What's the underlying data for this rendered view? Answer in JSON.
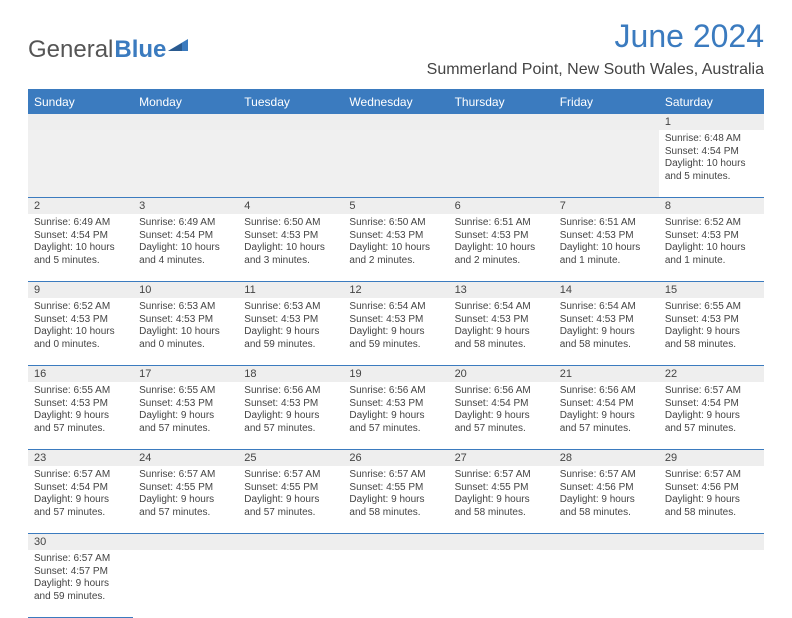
{
  "logo": {
    "general": "General",
    "blue": "Blue"
  },
  "title": "June 2024",
  "location": "Summerland Point, New South Wales, Australia",
  "colors": {
    "header_bg": "#3b7bbf",
    "header_text": "#ffffff",
    "daynum_bg": "#eeeeee",
    "border": "#3b7bbf",
    "title_color": "#3b7bbf",
    "body_text": "#444444",
    "page_bg": "#ffffff"
  },
  "day_headers": [
    "Sunday",
    "Monday",
    "Tuesday",
    "Wednesday",
    "Thursday",
    "Friday",
    "Saturday"
  ],
  "weeks": [
    [
      null,
      null,
      null,
      null,
      null,
      null,
      {
        "n": "1",
        "sr": "Sunrise: 6:48 AM",
        "ss": "Sunset: 4:54 PM",
        "d1": "Daylight: 10 hours",
        "d2": "and 5 minutes."
      }
    ],
    [
      {
        "n": "2",
        "sr": "Sunrise: 6:49 AM",
        "ss": "Sunset: 4:54 PM",
        "d1": "Daylight: 10 hours",
        "d2": "and 5 minutes."
      },
      {
        "n": "3",
        "sr": "Sunrise: 6:49 AM",
        "ss": "Sunset: 4:54 PM",
        "d1": "Daylight: 10 hours",
        "d2": "and 4 minutes."
      },
      {
        "n": "4",
        "sr": "Sunrise: 6:50 AM",
        "ss": "Sunset: 4:53 PM",
        "d1": "Daylight: 10 hours",
        "d2": "and 3 minutes."
      },
      {
        "n": "5",
        "sr": "Sunrise: 6:50 AM",
        "ss": "Sunset: 4:53 PM",
        "d1": "Daylight: 10 hours",
        "d2": "and 2 minutes."
      },
      {
        "n": "6",
        "sr": "Sunrise: 6:51 AM",
        "ss": "Sunset: 4:53 PM",
        "d1": "Daylight: 10 hours",
        "d2": "and 2 minutes."
      },
      {
        "n": "7",
        "sr": "Sunrise: 6:51 AM",
        "ss": "Sunset: 4:53 PM",
        "d1": "Daylight: 10 hours",
        "d2": "and 1 minute."
      },
      {
        "n": "8",
        "sr": "Sunrise: 6:52 AM",
        "ss": "Sunset: 4:53 PM",
        "d1": "Daylight: 10 hours",
        "d2": "and 1 minute."
      }
    ],
    [
      {
        "n": "9",
        "sr": "Sunrise: 6:52 AM",
        "ss": "Sunset: 4:53 PM",
        "d1": "Daylight: 10 hours",
        "d2": "and 0 minutes."
      },
      {
        "n": "10",
        "sr": "Sunrise: 6:53 AM",
        "ss": "Sunset: 4:53 PM",
        "d1": "Daylight: 10 hours",
        "d2": "and 0 minutes."
      },
      {
        "n": "11",
        "sr": "Sunrise: 6:53 AM",
        "ss": "Sunset: 4:53 PM",
        "d1": "Daylight: 9 hours",
        "d2": "and 59 minutes."
      },
      {
        "n": "12",
        "sr": "Sunrise: 6:54 AM",
        "ss": "Sunset: 4:53 PM",
        "d1": "Daylight: 9 hours",
        "d2": "and 59 minutes."
      },
      {
        "n": "13",
        "sr": "Sunrise: 6:54 AM",
        "ss": "Sunset: 4:53 PM",
        "d1": "Daylight: 9 hours",
        "d2": "and 58 minutes."
      },
      {
        "n": "14",
        "sr": "Sunrise: 6:54 AM",
        "ss": "Sunset: 4:53 PM",
        "d1": "Daylight: 9 hours",
        "d2": "and 58 minutes."
      },
      {
        "n": "15",
        "sr": "Sunrise: 6:55 AM",
        "ss": "Sunset: 4:53 PM",
        "d1": "Daylight: 9 hours",
        "d2": "and 58 minutes."
      }
    ],
    [
      {
        "n": "16",
        "sr": "Sunrise: 6:55 AM",
        "ss": "Sunset: 4:53 PM",
        "d1": "Daylight: 9 hours",
        "d2": "and 57 minutes."
      },
      {
        "n": "17",
        "sr": "Sunrise: 6:55 AM",
        "ss": "Sunset: 4:53 PM",
        "d1": "Daylight: 9 hours",
        "d2": "and 57 minutes."
      },
      {
        "n": "18",
        "sr": "Sunrise: 6:56 AM",
        "ss": "Sunset: 4:53 PM",
        "d1": "Daylight: 9 hours",
        "d2": "and 57 minutes."
      },
      {
        "n": "19",
        "sr": "Sunrise: 6:56 AM",
        "ss": "Sunset: 4:53 PM",
        "d1": "Daylight: 9 hours",
        "d2": "and 57 minutes."
      },
      {
        "n": "20",
        "sr": "Sunrise: 6:56 AM",
        "ss": "Sunset: 4:54 PM",
        "d1": "Daylight: 9 hours",
        "d2": "and 57 minutes."
      },
      {
        "n": "21",
        "sr": "Sunrise: 6:56 AM",
        "ss": "Sunset: 4:54 PM",
        "d1": "Daylight: 9 hours",
        "d2": "and 57 minutes."
      },
      {
        "n": "22",
        "sr": "Sunrise: 6:57 AM",
        "ss": "Sunset: 4:54 PM",
        "d1": "Daylight: 9 hours",
        "d2": "and 57 minutes."
      }
    ],
    [
      {
        "n": "23",
        "sr": "Sunrise: 6:57 AM",
        "ss": "Sunset: 4:54 PM",
        "d1": "Daylight: 9 hours",
        "d2": "and 57 minutes."
      },
      {
        "n": "24",
        "sr": "Sunrise: 6:57 AM",
        "ss": "Sunset: 4:55 PM",
        "d1": "Daylight: 9 hours",
        "d2": "and 57 minutes."
      },
      {
        "n": "25",
        "sr": "Sunrise: 6:57 AM",
        "ss": "Sunset: 4:55 PM",
        "d1": "Daylight: 9 hours",
        "d2": "and 57 minutes."
      },
      {
        "n": "26",
        "sr": "Sunrise: 6:57 AM",
        "ss": "Sunset: 4:55 PM",
        "d1": "Daylight: 9 hours",
        "d2": "and 58 minutes."
      },
      {
        "n": "27",
        "sr": "Sunrise: 6:57 AM",
        "ss": "Sunset: 4:55 PM",
        "d1": "Daylight: 9 hours",
        "d2": "and 58 minutes."
      },
      {
        "n": "28",
        "sr": "Sunrise: 6:57 AM",
        "ss": "Sunset: 4:56 PM",
        "d1": "Daylight: 9 hours",
        "d2": "and 58 minutes."
      },
      {
        "n": "29",
        "sr": "Sunrise: 6:57 AM",
        "ss": "Sunset: 4:56 PM",
        "d1": "Daylight: 9 hours",
        "d2": "and 58 minutes."
      }
    ],
    [
      {
        "n": "30",
        "sr": "Sunrise: 6:57 AM",
        "ss": "Sunset: 4:57 PM",
        "d1": "Daylight: 9 hours",
        "d2": "and 59 minutes."
      },
      null,
      null,
      null,
      null,
      null,
      null
    ]
  ]
}
